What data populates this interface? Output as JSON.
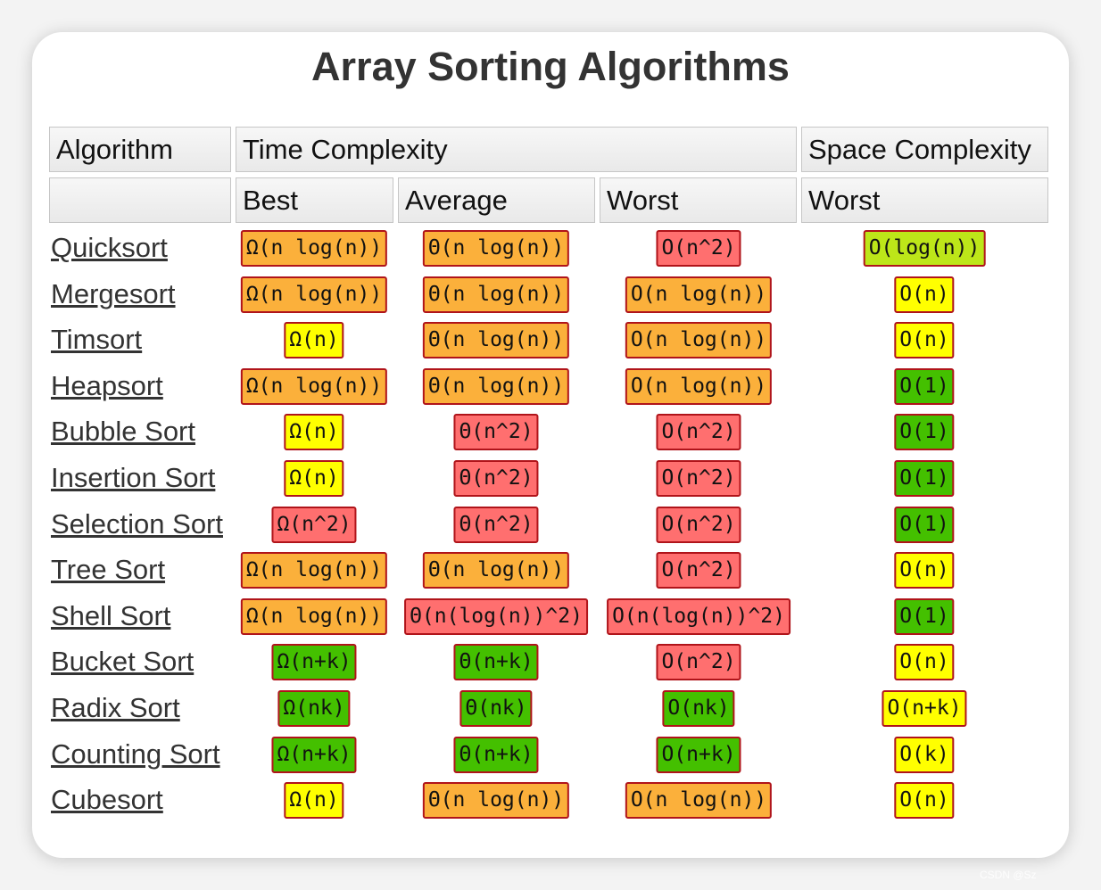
{
  "title": "Array Sorting Algorithms",
  "colors": {
    "orange": "#fbb03b",
    "yellow": "#ffff00",
    "red": "#ff6f6f",
    "green": "#44c000",
    "lightgreen": "#bde619"
  },
  "headers": {
    "algorithm": "Algorithm",
    "time_complexity": "Time Complexity",
    "space_complexity": "Space Complexity",
    "best": "Best",
    "average": "Average",
    "worst_time": "Worst",
    "worst_space": "Worst"
  },
  "rows": [
    {
      "name": "Quicksort",
      "best": {
        "text": "Ω(n log(n))",
        "color": "orange"
      },
      "average": {
        "text": "Θ(n log(n))",
        "color": "orange"
      },
      "worst": {
        "text": "O(n^2)",
        "color": "red"
      },
      "space": {
        "text": "O(log(n))",
        "color": "lightgreen"
      }
    },
    {
      "name": "Mergesort",
      "best": {
        "text": "Ω(n log(n))",
        "color": "orange"
      },
      "average": {
        "text": "Θ(n log(n))",
        "color": "orange"
      },
      "worst": {
        "text": "O(n log(n))",
        "color": "orange"
      },
      "space": {
        "text": "O(n)",
        "color": "yellow"
      }
    },
    {
      "name": "Timsort",
      "best": {
        "text": "Ω(n)",
        "color": "yellow"
      },
      "average": {
        "text": "Θ(n log(n))",
        "color": "orange"
      },
      "worst": {
        "text": "O(n log(n))",
        "color": "orange"
      },
      "space": {
        "text": "O(n)",
        "color": "yellow"
      }
    },
    {
      "name": "Heapsort",
      "best": {
        "text": "Ω(n log(n))",
        "color": "orange"
      },
      "average": {
        "text": "Θ(n log(n))",
        "color": "orange"
      },
      "worst": {
        "text": "O(n log(n))",
        "color": "orange"
      },
      "space": {
        "text": "O(1)",
        "color": "green"
      }
    },
    {
      "name": "Bubble Sort",
      "best": {
        "text": "Ω(n)",
        "color": "yellow"
      },
      "average": {
        "text": "Θ(n^2)",
        "color": "red"
      },
      "worst": {
        "text": "O(n^2)",
        "color": "red"
      },
      "space": {
        "text": "O(1)",
        "color": "green"
      }
    },
    {
      "name": "Insertion Sort",
      "best": {
        "text": "Ω(n)",
        "color": "yellow"
      },
      "average": {
        "text": "Θ(n^2)",
        "color": "red"
      },
      "worst": {
        "text": "O(n^2)",
        "color": "red"
      },
      "space": {
        "text": "O(1)",
        "color": "green"
      }
    },
    {
      "name": "Selection Sort",
      "best": {
        "text": "Ω(n^2)",
        "color": "red"
      },
      "average": {
        "text": "Θ(n^2)",
        "color": "red"
      },
      "worst": {
        "text": "O(n^2)",
        "color": "red"
      },
      "space": {
        "text": "O(1)",
        "color": "green"
      }
    },
    {
      "name": "Tree Sort",
      "best": {
        "text": "Ω(n log(n))",
        "color": "orange"
      },
      "average": {
        "text": "Θ(n log(n))",
        "color": "orange"
      },
      "worst": {
        "text": "O(n^2)",
        "color": "red"
      },
      "space": {
        "text": "O(n)",
        "color": "yellow"
      }
    },
    {
      "name": "Shell Sort",
      "best": {
        "text": "Ω(n log(n))",
        "color": "orange"
      },
      "average": {
        "text": "Θ(n(log(n))^2)",
        "color": "red"
      },
      "worst": {
        "text": "O(n(log(n))^2)",
        "color": "red"
      },
      "space": {
        "text": "O(1)",
        "color": "green"
      }
    },
    {
      "name": "Bucket Sort",
      "best": {
        "text": "Ω(n+k)",
        "color": "green"
      },
      "average": {
        "text": "Θ(n+k)",
        "color": "green"
      },
      "worst": {
        "text": "O(n^2)",
        "color": "red"
      },
      "space": {
        "text": "O(n)",
        "color": "yellow"
      }
    },
    {
      "name": "Radix Sort",
      "best": {
        "text": "Ω(nk)",
        "color": "green"
      },
      "average": {
        "text": "Θ(nk)",
        "color": "green"
      },
      "worst": {
        "text": "O(nk)",
        "color": "green"
      },
      "space": {
        "text": "O(n+k)",
        "color": "yellow"
      }
    },
    {
      "name": "Counting Sort",
      "best": {
        "text": "Ω(n+k)",
        "color": "green"
      },
      "average": {
        "text": "Θ(n+k)",
        "color": "green"
      },
      "worst": {
        "text": "O(n+k)",
        "color": "green"
      },
      "space": {
        "text": "O(k)",
        "color": "yellow"
      }
    },
    {
      "name": "Cubesort",
      "best": {
        "text": "Ω(n)",
        "color": "yellow"
      },
      "average": {
        "text": "Θ(n log(n))",
        "color": "orange"
      },
      "worst": {
        "text": "O(n log(n))",
        "color": "orange"
      },
      "space": {
        "text": "O(n)",
        "color": "yellow"
      }
    }
  ],
  "watermark": "CSDN @Sz"
}
